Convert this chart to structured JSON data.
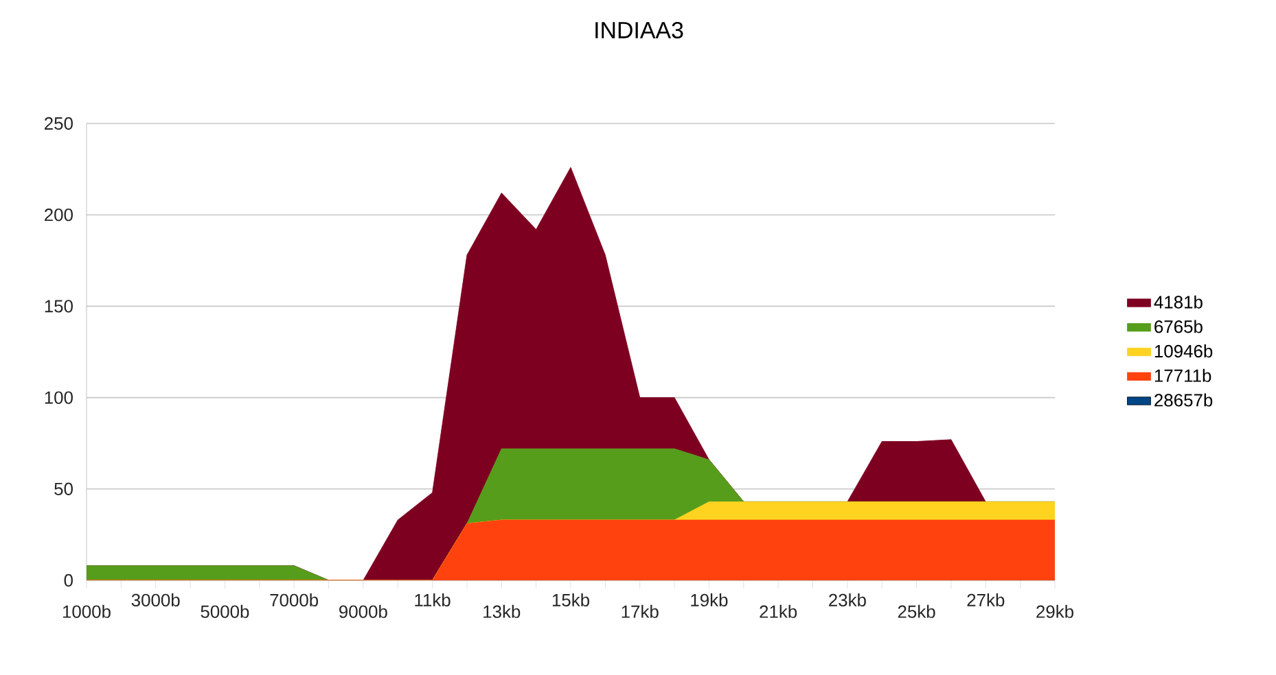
{
  "chart_data": {
    "type": "area",
    "title": "INDIAA3",
    "stacked": true,
    "grid": "y",
    "legend": "right",
    "categories": [
      "1000b",
      null,
      "3000b",
      null,
      "5000b",
      null,
      "7000b",
      null,
      "9000b",
      null,
      "11kb",
      null,
      "13kb",
      null,
      "15kb",
      null,
      "17kb",
      null,
      "19kb",
      null,
      "21kb",
      null,
      "23kb",
      null,
      "25kb",
      null,
      "27kb",
      null,
      "29kb"
    ],
    "ylim": [
      0,
      250
    ],
    "yticks": [
      0,
      50,
      100,
      150,
      200,
      250
    ],
    "series": [
      {
        "name": "28657b",
        "color": "#004586",
        "values": [
          null,
          null,
          null,
          null,
          null,
          null,
          null,
          null,
          null,
          null,
          null,
          null,
          null,
          null,
          null,
          null,
          null,
          null,
          null,
          null,
          null,
          null,
          null,
          null,
          null,
          null,
          null,
          null,
          null
        ]
      },
      {
        "name": "17711b",
        "color": "#ff420e",
        "values": [
          0,
          0,
          0,
          0,
          0,
          0,
          0,
          0,
          0,
          0,
          0,
          31,
          33,
          33,
          33,
          33,
          33,
          33,
          33,
          33,
          33,
          33,
          33,
          33,
          33,
          33,
          33,
          33,
          33
        ]
      },
      {
        "name": "10946b",
        "color": "#ffd320",
        "values": [
          0,
          0,
          0,
          0,
          0,
          0,
          0,
          0,
          0,
          0,
          0,
          0,
          0,
          0,
          0,
          0,
          0,
          0,
          10,
          10,
          10,
          10,
          10,
          10,
          10,
          10,
          10,
          10,
          10
        ]
      },
      {
        "name": "6765b",
        "color": "#579d1c",
        "values": [
          8,
          8,
          8,
          8,
          8,
          8,
          8,
          0,
          0,
          0,
          0,
          0,
          39,
          39,
          39,
          39,
          39,
          39,
          23,
          0,
          0,
          0,
          0,
          0,
          0,
          0,
          0,
          0,
          0
        ]
      },
      {
        "name": "4181b",
        "color": "#7e0021",
        "values": [
          0,
          0,
          0,
          0,
          0,
          0,
          0,
          0,
          0,
          33,
          48,
          147,
          140,
          120,
          154,
          106,
          28,
          28,
          0,
          0,
          0,
          0,
          0,
          33,
          33,
          34,
          0,
          0,
          0
        ]
      }
    ]
  }
}
